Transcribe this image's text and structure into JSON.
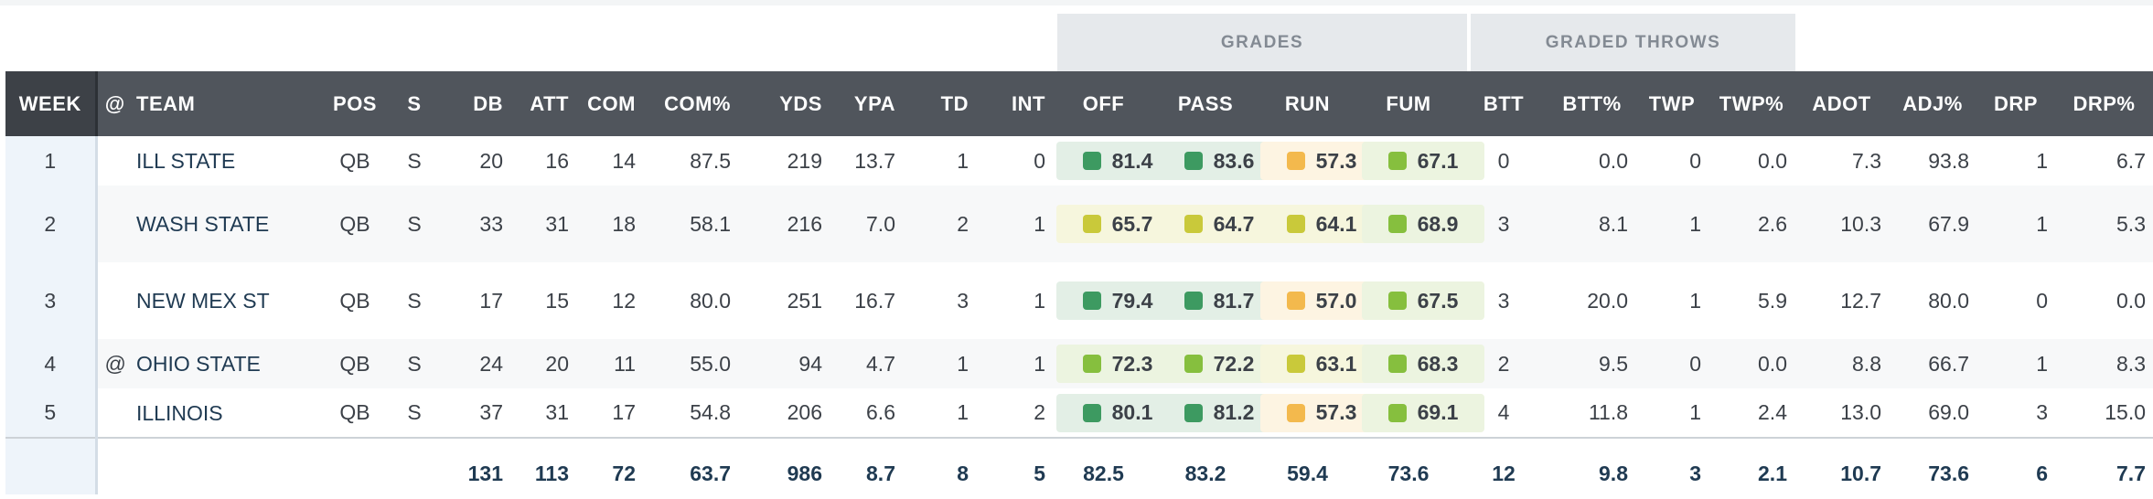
{
  "groups": {
    "grades": "GRADES",
    "graded_throws": "GRADED THROWS"
  },
  "columns": [
    "WEEK",
    "@",
    "TEAM",
    "POS",
    "S",
    "DB",
    "ATT",
    "COM",
    "COM%",
    "YDS",
    "YPA",
    "TD",
    "INT",
    "OFF",
    "PASS",
    "RUN",
    "FUM",
    "BTT",
    "BTT%",
    "TWP",
    "TWP%",
    "ADOT",
    "ADJ%",
    "DRP",
    "DRP%"
  ],
  "rows": [
    {
      "week": "1",
      "at": "",
      "team": "ILL STATE",
      "pos": "QB",
      "s": "S",
      "db": "20",
      "att": "16",
      "com": "14",
      "com_pct": "87.5",
      "yds": "219",
      "ypa": "13.7",
      "td": "1",
      "int": "0",
      "off": "81.4",
      "pass": "83.6",
      "run": "57.3",
      "fum": "67.1",
      "btt": "0",
      "btt_pct": "0.0",
      "twp": "0",
      "twp_pct": "0.0",
      "adot": "7.3",
      "adj_pct": "93.8",
      "drp": "1",
      "drp_pct": "6.7"
    },
    {
      "week": "2",
      "at": "",
      "team": "WASH STATE",
      "pos": "QB",
      "s": "S",
      "db": "33",
      "att": "31",
      "com": "18",
      "com_pct": "58.1",
      "yds": "216",
      "ypa": "7.0",
      "td": "2",
      "int": "1",
      "off": "65.7",
      "pass": "64.7",
      "run": "64.1",
      "fum": "68.9",
      "btt": "3",
      "btt_pct": "8.1",
      "twp": "1",
      "twp_pct": "2.6",
      "adot": "10.3",
      "adj_pct": "67.9",
      "drp": "1",
      "drp_pct": "5.3"
    },
    {
      "week": "3",
      "at": "",
      "team": "NEW MEX ST",
      "pos": "QB",
      "s": "S",
      "db": "17",
      "att": "15",
      "com": "12",
      "com_pct": "80.0",
      "yds": "251",
      "ypa": "16.7",
      "td": "3",
      "int": "1",
      "off": "79.4",
      "pass": "81.7",
      "run": "57.0",
      "fum": "67.5",
      "btt": "3",
      "btt_pct": "20.0",
      "twp": "1",
      "twp_pct": "5.9",
      "adot": "12.7",
      "adj_pct": "80.0",
      "drp": "0",
      "drp_pct": "0.0"
    },
    {
      "week": "4",
      "at": "@",
      "team": "OHIO STATE",
      "pos": "QB",
      "s": "S",
      "db": "24",
      "att": "20",
      "com": "11",
      "com_pct": "55.0",
      "yds": "94",
      "ypa": "4.7",
      "td": "1",
      "int": "1",
      "off": "72.3",
      "pass": "72.2",
      "run": "63.1",
      "fum": "68.3",
      "btt": "2",
      "btt_pct": "9.5",
      "twp": "0",
      "twp_pct": "0.0",
      "adot": "8.8",
      "adj_pct": "66.7",
      "drp": "1",
      "drp_pct": "8.3"
    },
    {
      "week": "5",
      "at": "",
      "team": "ILLINOIS",
      "pos": "QB",
      "s": "S",
      "db": "37",
      "att": "31",
      "com": "17",
      "com_pct": "54.8",
      "yds": "206",
      "ypa": "6.6",
      "td": "1",
      "int": "2",
      "off": "80.1",
      "pass": "81.2",
      "run": "57.3",
      "fum": "69.1",
      "btt": "4",
      "btt_pct": "11.8",
      "twp": "1",
      "twp_pct": "2.4",
      "adot": "13.0",
      "adj_pct": "69.0",
      "drp": "3",
      "drp_pct": "15.0"
    }
  ],
  "grade_colors": {
    "rows": [
      {
        "off": "dark",
        "pass": "dark",
        "run": "orange",
        "fum": "lime"
      },
      {
        "off": "yel",
        "pass": "yel",
        "run": "yel",
        "fum": "lime"
      },
      {
        "off": "dark",
        "pass": "dark",
        "run": "orange",
        "fum": "lime"
      },
      {
        "off": "lime",
        "pass": "lime",
        "run": "yel",
        "fum": "lime"
      },
      {
        "off": "dark",
        "pass": "dark",
        "run": "orange",
        "fum": "lime"
      }
    ],
    "dark": "#3d9a61",
    "lime": "#86bf3e",
    "yel": "#c9c93a",
    "orange": "#f3b94d"
  },
  "totals": {
    "db": "131",
    "att": "113",
    "com": "72",
    "com_pct": "63.7",
    "yds": "986",
    "ypa": "8.7",
    "td": "8",
    "int": "5",
    "off": "82.5",
    "pass": "83.2",
    "run": "59.4",
    "fum": "73.6",
    "btt": "12",
    "btt_pct": "9.8",
    "twp": "3",
    "twp_pct": "2.1",
    "adot": "10.7",
    "adj_pct": "73.6",
    "drp": "6",
    "drp_pct": "7.7"
  }
}
